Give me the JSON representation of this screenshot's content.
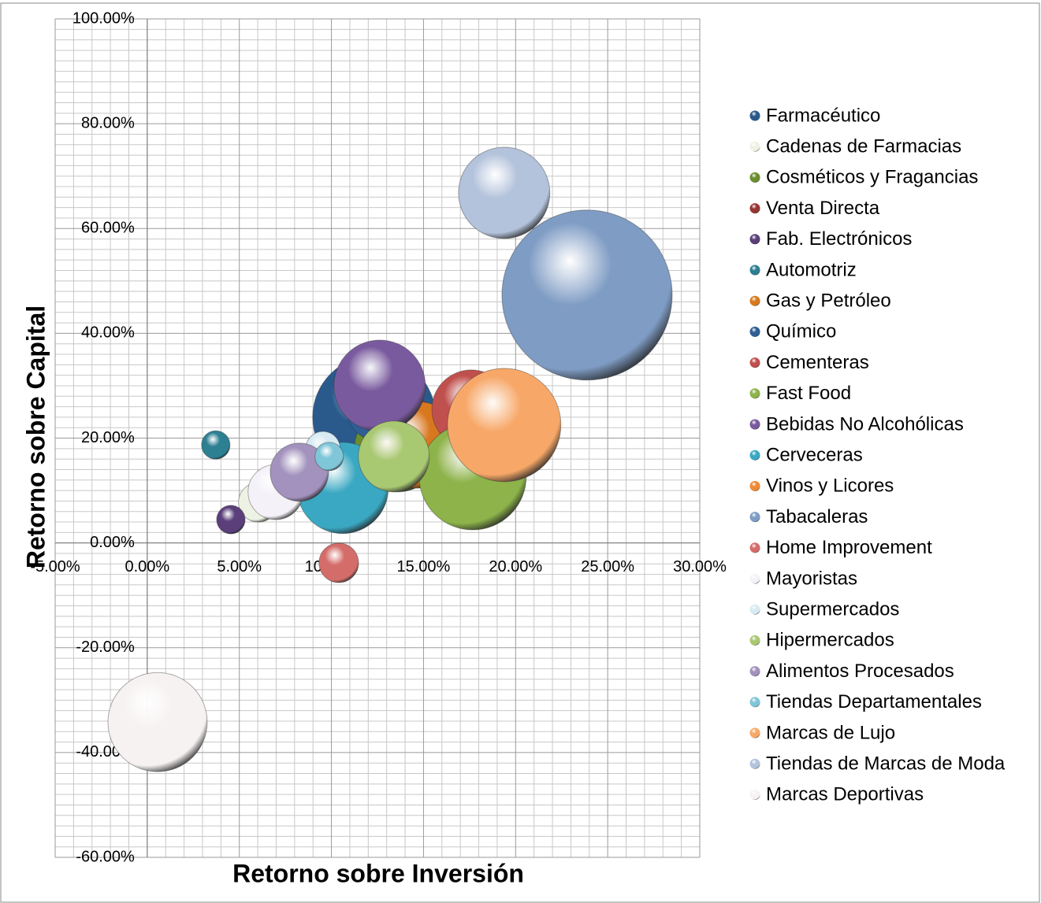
{
  "chart_data": {
    "type": "bubble",
    "x_label": "Retorno sobre Inversión",
    "y_label": "Retorno sobre Capital",
    "xlim": [
      -5,
      30
    ],
    "ylim": [
      -60,
      100
    ],
    "xticks": [
      {
        "value": -5,
        "label": "-5.00%"
      },
      {
        "value": 0,
        "label": "0.00%"
      },
      {
        "value": 5,
        "label": "5.00%"
      },
      {
        "value": 10,
        "label": "10.00%"
      },
      {
        "value": 15,
        "label": "15.00%"
      },
      {
        "value": 20,
        "label": "20.00%"
      },
      {
        "value": 25,
        "label": "25.00%"
      },
      {
        "value": 30,
        "label": "30.00%"
      }
    ],
    "yticks": [
      {
        "value": -60,
        "label": "-60.00%"
      },
      {
        "value": -40,
        "label": "-40.00%"
      },
      {
        "value": -20,
        "label": "-20.00%"
      },
      {
        "value": 0,
        "label": "0.00%"
      },
      {
        "value": 20,
        "label": "20.00%"
      },
      {
        "value": 40,
        "label": "40.00%"
      },
      {
        "value": 60,
        "label": "60.00%"
      },
      {
        "value": 80,
        "label": "80.00%"
      },
      {
        "value": 100,
        "label": "100.00%"
      }
    ],
    "grid": true,
    "legend": "right",
    "series": [
      {
        "name": "Farmacéutico",
        "color": "#2a5a8c",
        "x": [
          12.32
        ],
        "values": [
          24.0
        ],
        "sizes": [
          52.2
        ]
      },
      {
        "name": "Cadenas de Farmacias",
        "color": "#eef2e4",
        "x": [
          6.03
        ],
        "values": [
          7.75
        ],
        "sizes": [
          5.4
        ]
      },
      {
        "name": "Cosméticos y Fragancias",
        "color": "#6b8e2e",
        "x": [
          13.6
        ],
        "values": [
          18.0
        ],
        "sizes": [
          25.9
        ]
      },
      {
        "name": "Venta Directa",
        "color": "#953735",
        "x": [
          14.25
        ],
        "values": [
          21.7
        ],
        "sizes": [
          13.7
        ]
      },
      {
        "name": "Fab. Electrónicos",
        "color": "#5a3f7a",
        "x": [
          4.54
        ],
        "values": [
          4.45
        ],
        "sizes": [
          2.8
        ]
      },
      {
        "name": "Automotriz",
        "color": "#2d7f92",
        "x": [
          3.72
        ],
        "values": [
          18.7
        ],
        "sizes": [
          2.8
        ]
      },
      {
        "name": "Gas y Petróleo",
        "color": "#d8781e",
        "x": [
          14.68
        ],
        "values": [
          18.7
        ],
        "sizes": [
          25.9
        ]
      },
      {
        "name": "Químico",
        "color": "#2e5f95",
        "x": [
          12.54
        ],
        "values": [
          25.5
        ],
        "sizes": [
          13.7
        ]
      },
      {
        "name": "Cementeras",
        "color": "#c0504d",
        "x": [
          17.59
        ],
        "values": [
          25.5
        ],
        "sizes": [
          21.4
        ]
      },
      {
        "name": "Fast Food",
        "color": "#8db34a",
        "x": [
          17.67
        ],
        "values": [
          12.7
        ],
        "sizes": [
          39.6
        ]
      },
      {
        "name": "Bebidas No Alcohólicas",
        "color": "#7a5a9e",
        "x": [
          12.62
        ],
        "values": [
          30.0
        ],
        "sizes": [
          28.8
        ]
      },
      {
        "name": "Cerveceras",
        "color": "#3aa8c2",
        "x": [
          10.61
        ],
        "values": [
          10.5
        ],
        "sizes": [
          28.8
        ]
      },
      {
        "name": "Vinos y Licores",
        "color": "#ee8a35",
        "x": [
          18.96
        ],
        "values": [
          21.7
        ],
        "sizes": [
          21.4
        ]
      },
      {
        "name": "Tabacaleras",
        "color": "#7f9cc4",
        "x": [
          23.88
        ],
        "values": [
          47.3
        ],
        "sizes": [
          100
        ]
      },
      {
        "name": "Home Improvement",
        "color": "#d46d6a",
        "x": [
          10.4
        ],
        "values": [
          -3.8
        ],
        "sizes": [
          5.4
        ]
      },
      {
        "name": "Mayoristas",
        "color": "#f4f2f8",
        "x": [
          6.97
        ],
        "values": [
          9.7
        ],
        "sizes": [
          10.5
        ]
      },
      {
        "name": "Supermercados",
        "color": "#d6ebf2",
        "x": [
          9.54
        ],
        "values": [
          18.0
        ],
        "sizes": [
          4.1
        ]
      },
      {
        "name": "Hipermercados",
        "color": "#a9c872",
        "x": [
          13.39
        ],
        "values": [
          16.5
        ],
        "sizes": [
          17.4
        ]
      },
      {
        "name": "Alimentos Procesados",
        "color": "#a392bd",
        "x": [
          8.26
        ],
        "values": [
          13.5
        ],
        "sizes": [
          11.7
        ]
      },
      {
        "name": "Tiendas Departamentales",
        "color": "#7fc6d8",
        "x": [
          9.88
        ],
        "values": [
          16.5
        ],
        "sizes": [
          2.8
        ]
      },
      {
        "name": "Marcas de Lujo",
        "color": "#f7a868",
        "x": [
          19.38
        ],
        "values": [
          22.5
        ],
        "sizes": [
          44.4
        ]
      },
      {
        "name": "Tiendas de Marcas de Moda",
        "color": "#b4c3dc",
        "x": [
          19.38
        ],
        "values": [
          66.8
        ],
        "sizes": [
          28.8
        ]
      },
      {
        "name": "Marcas Deportivas",
        "color": "#f7f2f2",
        "x": [
          0.56
        ],
        "values": [
          -34.2
        ],
        "sizes": [
          34.0
        ]
      }
    ]
  }
}
